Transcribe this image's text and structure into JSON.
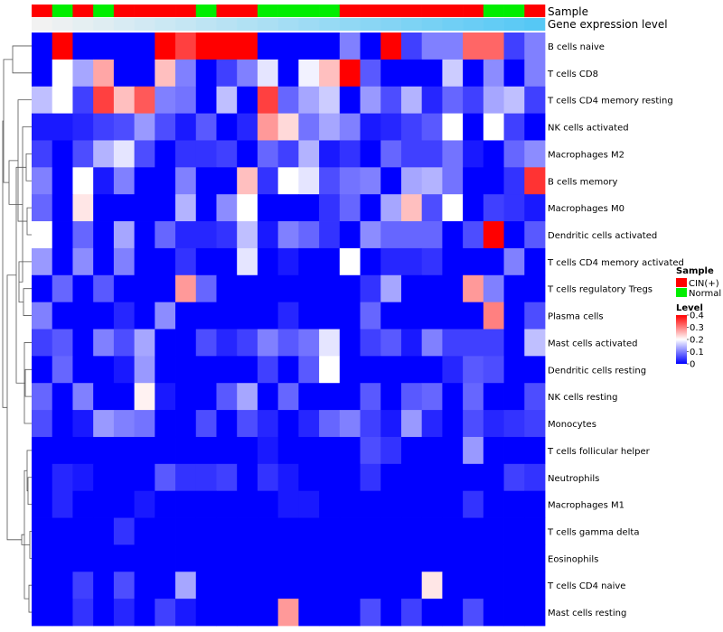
{
  "chart_data": {
    "type": "heatmap",
    "annotations": {
      "sample_title": "Sample",
      "expression_title": "Gene expression level"
    },
    "samples": [
      "CIN(+)",
      "Normal",
      "CIN(+)",
      "Normal",
      "CIN(+)",
      "CIN(+)",
      "CIN(+)",
      "CIN(+)",
      "Normal",
      "CIN(+)",
      "CIN(+)",
      "Normal",
      "Normal",
      "Normal",
      "Normal",
      "CIN(+)",
      "CIN(+)",
      "CIN(+)",
      "CIN(+)",
      "CIN(+)",
      "CIN(+)",
      "CIN(+)",
      "Normal",
      "Normal",
      "CIN(+)"
    ],
    "sample_colors": {
      "CIN(+)": "#ff0000",
      "Normal": "#00ee00"
    },
    "expression_gradient": [
      "#f2f2f2",
      "#56c8f5"
    ],
    "rows": [
      "B cells naive",
      "T cells CD8",
      "T cells CD4 memory resting",
      "NK cells activated",
      "Macrophages M2",
      "B cells memory",
      "Macrophages M0",
      "Dendritic cells activated",
      "T cells CD4 memory activated",
      "T cells regulatory  Tregs",
      "Plasma cells",
      "Mast cells activated",
      "Dendritic cells resting",
      "NK cells resting",
      "Monocytes",
      "T cells follicular helper",
      "Neutrophils",
      "Macrophages M1",
      "T cells gamma delta",
      "Eosinophils",
      "T cells CD4 naive",
      "Mast cells resting"
    ],
    "values": [
      [
        0,
        0.4,
        0,
        0,
        0,
        0,
        0.4,
        0.35,
        0.4,
        0.4,
        0.4,
        0,
        0,
        0,
        0,
        0.1,
        0,
        0.4,
        0.05,
        0.1,
        0.1,
        0.32,
        0.32,
        0.05,
        0.1
      ],
      [
        0,
        0.2,
        0.13,
        0.27,
        0,
        0,
        0.25,
        0.1,
        0,
        0.05,
        0.1,
        0.18,
        0,
        0.19,
        0.25,
        0.4,
        0.07,
        0,
        0,
        0,
        0.16,
        0,
        0.11,
        0,
        0.1
      ],
      [
        0.15,
        0.2,
        0.05,
        0.35,
        0.25,
        0.33,
        0.1,
        0.09,
        0,
        0.15,
        0,
        0.35,
        0.08,
        0.13,
        0.16,
        0,
        0.12,
        0.06,
        0.14,
        0.03,
        0.08,
        0.05,
        0.13,
        0.15,
        0.05
      ],
      [
        0.02,
        0.02,
        0.03,
        0.05,
        0.06,
        0.12,
        0.06,
        0.02,
        0.07,
        0,
        0.03,
        0.28,
        0.23,
        0.09,
        0.13,
        0.1,
        0.02,
        0.03,
        0.05,
        0.07,
        0.2,
        0,
        0.2,
        0.05,
        0
      ],
      [
        0.05,
        0,
        0.06,
        0.14,
        0.18,
        0.06,
        0,
        0.04,
        0.04,
        0.05,
        0,
        0.08,
        0.05,
        0.14,
        0.02,
        0.04,
        0,
        0.08,
        0.05,
        0.05,
        0.09,
        0.02,
        0,
        0.08,
        0.11
      ],
      [
        0.1,
        0,
        0.2,
        0.02,
        0.1,
        0,
        0,
        0.1,
        0,
        0,
        0.25,
        0.04,
        0.2,
        0.18,
        0.06,
        0.09,
        0.1,
        0,
        0.13,
        0.14,
        0.09,
        0,
        0,
        0.04,
        0.36
      ],
      [
        0.08,
        0,
        0.22,
        0,
        0,
        0,
        0,
        0.14,
        0,
        0.11,
        0.2,
        0,
        0,
        0,
        0.04,
        0.08,
        0,
        0.13,
        0.25,
        0.06,
        0.2,
        0,
        0.05,
        0.04,
        0.02
      ],
      [
        0.2,
        0,
        0.08,
        0,
        0.13,
        0,
        0.08,
        0.03,
        0.03,
        0.04,
        0.15,
        0.02,
        0.1,
        0.08,
        0.04,
        0,
        0.11,
        0.08,
        0.08,
        0.08,
        0,
        0.06,
        0.4,
        0,
        0.07
      ],
      [
        0.12,
        0,
        0.11,
        0,
        0.1,
        0,
        0,
        0.04,
        0,
        0,
        0.18,
        0,
        0.02,
        0,
        0,
        0.2,
        0,
        0.03,
        0.03,
        0.04,
        0,
        0,
        0,
        0.1,
        0
      ],
      [
        0,
        0.08,
        0,
        0.07,
        0,
        0,
        0,
        0.28,
        0.08,
        0,
        0,
        0,
        0,
        0,
        0,
        0,
        0.04,
        0.13,
        0,
        0,
        0,
        0.28,
        0.1,
        0,
        0
      ],
      [
        0.1,
        0,
        0,
        0,
        0.03,
        0,
        0.11,
        0,
        0,
        0,
        0,
        0,
        0.03,
        0,
        0,
        0,
        0.08,
        0,
        0,
        0,
        0,
        0,
        0.3,
        0,
        0.06
      ],
      [
        0.05,
        0.07,
        0,
        0.1,
        0.06,
        0.13,
        0,
        0,
        0.06,
        0.03,
        0.05,
        0.1,
        0.07,
        0.09,
        0.18,
        0,
        0.05,
        0.07,
        0.02,
        0.1,
        0.05,
        0.05,
        0.05,
        0,
        0.15
      ],
      [
        0,
        0.08,
        0,
        0,
        0.02,
        0.12,
        0,
        0,
        0,
        0,
        0,
        0.05,
        0,
        0.07,
        0.2,
        0,
        0,
        0,
        0,
        0,
        0.03,
        0.07,
        0.06,
        0,
        0
      ],
      [
        0.08,
        0,
        0.1,
        0,
        0,
        0.21,
        0.02,
        0,
        0,
        0.07,
        0.13,
        0,
        0.08,
        0,
        0,
        0,
        0.07,
        0,
        0.07,
        0.08,
        0,
        0.08,
        0,
        0,
        0.06
      ],
      [
        0.06,
        0,
        0.02,
        0.12,
        0.1,
        0.09,
        0,
        0,
        0.06,
        0,
        0.06,
        0.03,
        0,
        0.03,
        0.08,
        0.1,
        0.05,
        0.02,
        0.12,
        0.03,
        0,
        0.06,
        0.03,
        0.04,
        0.05
      ],
      [
        0,
        0,
        0,
        0,
        0,
        0,
        0,
        0,
        0,
        0,
        0,
        0.02,
        0,
        0,
        0,
        0,
        0.06,
        0.04,
        0,
        0,
        0,
        0.12,
        0,
        0,
        0
      ],
      [
        0,
        0.03,
        0.02,
        0,
        0,
        0,
        0.07,
        0.04,
        0.04,
        0.05,
        0,
        0.04,
        0.02,
        0,
        0,
        0,
        0.04,
        0,
        0,
        0,
        0,
        0,
        0,
        0.05,
        0.04
      ],
      [
        0,
        0.03,
        0,
        0,
        0,
        0.02,
        0,
        0,
        0,
        0,
        0,
        0,
        0.02,
        0.02,
        0,
        0,
        0,
        0,
        0,
        0,
        0,
        0.04,
        0,
        0,
        0
      ],
      [
        0,
        0,
        0,
        0,
        0.04,
        0,
        0,
        0,
        0,
        0,
        0,
        0,
        0,
        0,
        0,
        0,
        0,
        0,
        0,
        0,
        0,
        0,
        0,
        0,
        0
      ],
      [
        0,
        0,
        0,
        0,
        0,
        0,
        0,
        0,
        0,
        0,
        0,
        0,
        0,
        0,
        0,
        0,
        0,
        0,
        0,
        0,
        0,
        0,
        0,
        0,
        0
      ],
      [
        0,
        0,
        0.05,
        0,
        0.06,
        0,
        0,
        0.13,
        0,
        0,
        0,
        0,
        0,
        0,
        0,
        0,
        0,
        0,
        0,
        0.22,
        0,
        0,
        0,
        0,
        0
      ],
      [
        0,
        0,
        0.04,
        0,
        0.03,
        0,
        0.05,
        0.02,
        0,
        0,
        0,
        0,
        0.28,
        0,
        0,
        0,
        0.06,
        0,
        0.05,
        0,
        0,
        0.06,
        0,
        0,
        0
      ]
    ],
    "legend": {
      "sample_title": "Sample",
      "sample_entries": [
        "CIN(+)",
        "Normal"
      ],
      "level_title": "Level",
      "level_ticks": [
        "0.4",
        "0.3",
        "0.2",
        "0.1",
        "0"
      ]
    },
    "color_range": [
      0,
      0.4
    ],
    "palette": [
      "#0000ff",
      "#ffffff",
      "#ff0000"
    ]
  }
}
